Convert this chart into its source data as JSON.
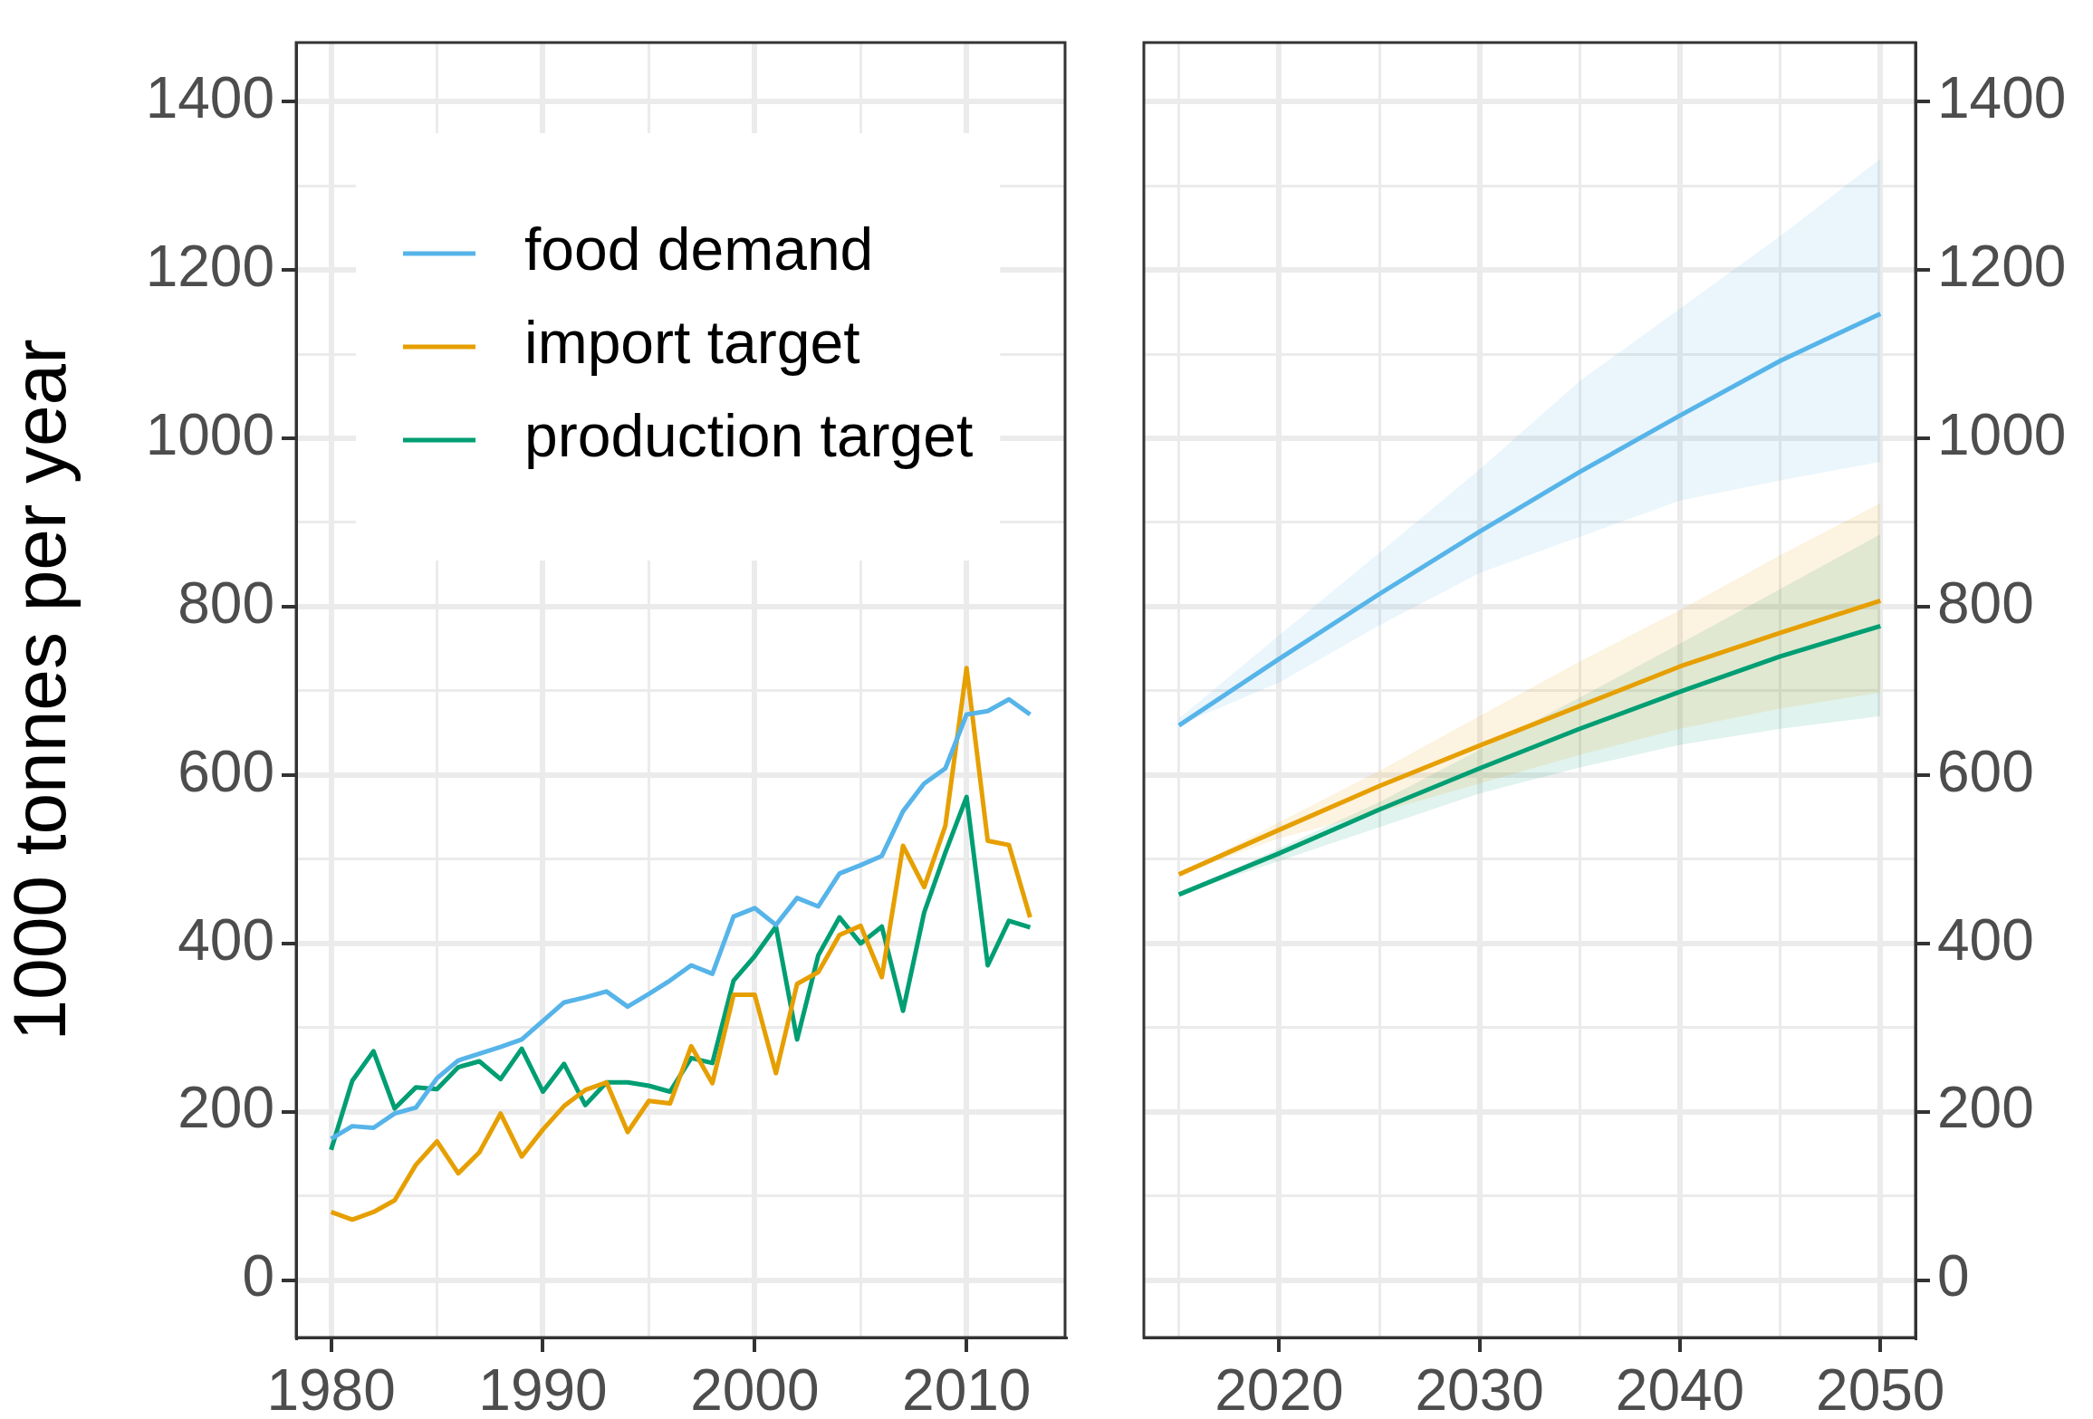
{
  "chart_data": [
    {
      "type": "line",
      "ylabel": "1000 tonnes per year",
      "legend": "top left",
      "grid": true,
      "marker": "none",
      "line_style": "solid",
      "x": [
        1980,
        1981,
        1982,
        1983,
        1984,
        1985,
        1986,
        1987,
        1988,
        1989,
        1990,
        1991,
        1992,
        1993,
        1994,
        1995,
        1996,
        1997,
        1998,
        1999,
        2000,
        2001,
        2002,
        2003,
        2004,
        2005,
        2006,
        2007,
        2008,
        2009,
        2010,
        2011,
        2012,
        2013
      ],
      "xlim": [
        1978.35,
        2014.65
      ],
      "xticks": [
        1980,
        {
          "value": 1985,
          "label": null
        },
        1990,
        {
          "value": 1995,
          "label": null
        },
        2000,
        {
          "value": 2005,
          "label": null
        },
        2010
      ],
      "ylim": [
        -68,
        1470
      ],
      "yticks": [
        0,
        {
          "value": 100,
          "label": null
        },
        200,
        {
          "value": 300,
          "label": null
        },
        400,
        {
          "value": 500,
          "label": null
        },
        600,
        {
          "value": 700,
          "label": null
        },
        800,
        {
          "value": 900,
          "label": null
        },
        1000,
        {
          "value": 1100,
          "label": null
        },
        1200,
        {
          "value": 1300,
          "label": null
        },
        1400
      ],
      "series": [
        {
          "name": "food demand",
          "color": "#56b4e9",
          "values": [
            168,
            183,
            181,
            198,
            205,
            240,
            261,
            269,
            277,
            286,
            308,
            330,
            336,
            343,
            325,
            340,
            356,
            374,
            364,
            432,
            442,
            422,
            454,
            444,
            483,
            493,
            504,
            557,
            590,
            608,
            672,
            676,
            690,
            672
          ]
        },
        {
          "name": "import target",
          "color": "#e69f00",
          "values": [
            81,
            72,
            81,
            95,
            137,
            165,
            127,
            152,
            198,
            147,
            179,
            207,
            226,
            235,
            176,
            213,
            210,
            278,
            234,
            339,
            339,
            246,
            352,
            366,
            410,
            421,
            360,
            516,
            467,
            540,
            727,
            522,
            517,
            431
          ]
        },
        {
          "name": "production target",
          "color": "#009e73",
          "values": [
            155,
            237,
            272,
            204,
            229,
            227,
            253,
            260,
            239,
            275,
            224,
            257,
            208,
            235,
            235,
            231,
            224,
            264,
            258,
            356,
            385,
            420,
            286,
            386,
            431,
            400,
            420,
            320,
            437,
            508,
            574,
            374,
            427,
            419
          ]
        }
      ]
    },
    {
      "type": "line",
      "grid": true,
      "marker": "none",
      "line_style": "solid",
      "x": [
        2015,
        2020,
        2025,
        2030,
        2035,
        2040,
        2045,
        2050
      ],
      "xlim": [
        2013.25,
        2051.75
      ],
      "xticks": [
        {
          "value": 2015,
          "label": null
        },
        2020,
        {
          "value": 2025,
          "label": null
        },
        2030,
        {
          "value": 2035,
          "label": null
        },
        2040,
        {
          "value": 2045,
          "label": null
        },
        2050
      ],
      "y2lim": [
        -68,
        1470
      ],
      "y2ticks": [
        0,
        {
          "value": 100,
          "label": null
        },
        200,
        {
          "value": 300,
          "label": null
        },
        400,
        {
          "value": 500,
          "label": null
        },
        600,
        {
          "value": 700,
          "label": null
        },
        800,
        {
          "value": 900,
          "label": null
        },
        1000,
        {
          "value": 1100,
          "label": null
        },
        1200,
        {
          "value": 1300,
          "label": null
        },
        1400
      ],
      "series": [
        {
          "color": "#56b4e9",
          "axis": "y2",
          "values": [
            659,
            738,
            815,
            889,
            960,
            1027,
            1092,
            1148
          ],
          "lower": [
            659,
            710,
            778,
            840,
            883,
            926,
            950,
            972
          ],
          "upper": [
            667,
            766,
            864,
            963,
            1068,
            1154,
            1240,
            1332
          ]
        },
        {
          "color": "#e69f00",
          "axis": "y2",
          "values": [
            482,
            535,
            587,
            635,
            682,
            729,
            769,
            807
          ],
          "lower": [
            482,
            525,
            556,
            590,
            624,
            655,
            679,
            698
          ],
          "upper": [
            482,
            544,
            605,
            670,
            735,
            796,
            861,
            923
          ]
        },
        {
          "color": "#009e73",
          "axis": "y2",
          "values": [
            458,
            507,
            559,
            608,
            655,
            699,
            741,
            777
          ],
          "lower": [
            458,
            498,
            538,
            578,
            609,
            636,
            655,
            670
          ],
          "upper": [
            458,
            513,
            568,
            630,
            692,
            756,
            821,
            886
          ]
        }
      ]
    }
  ]
}
